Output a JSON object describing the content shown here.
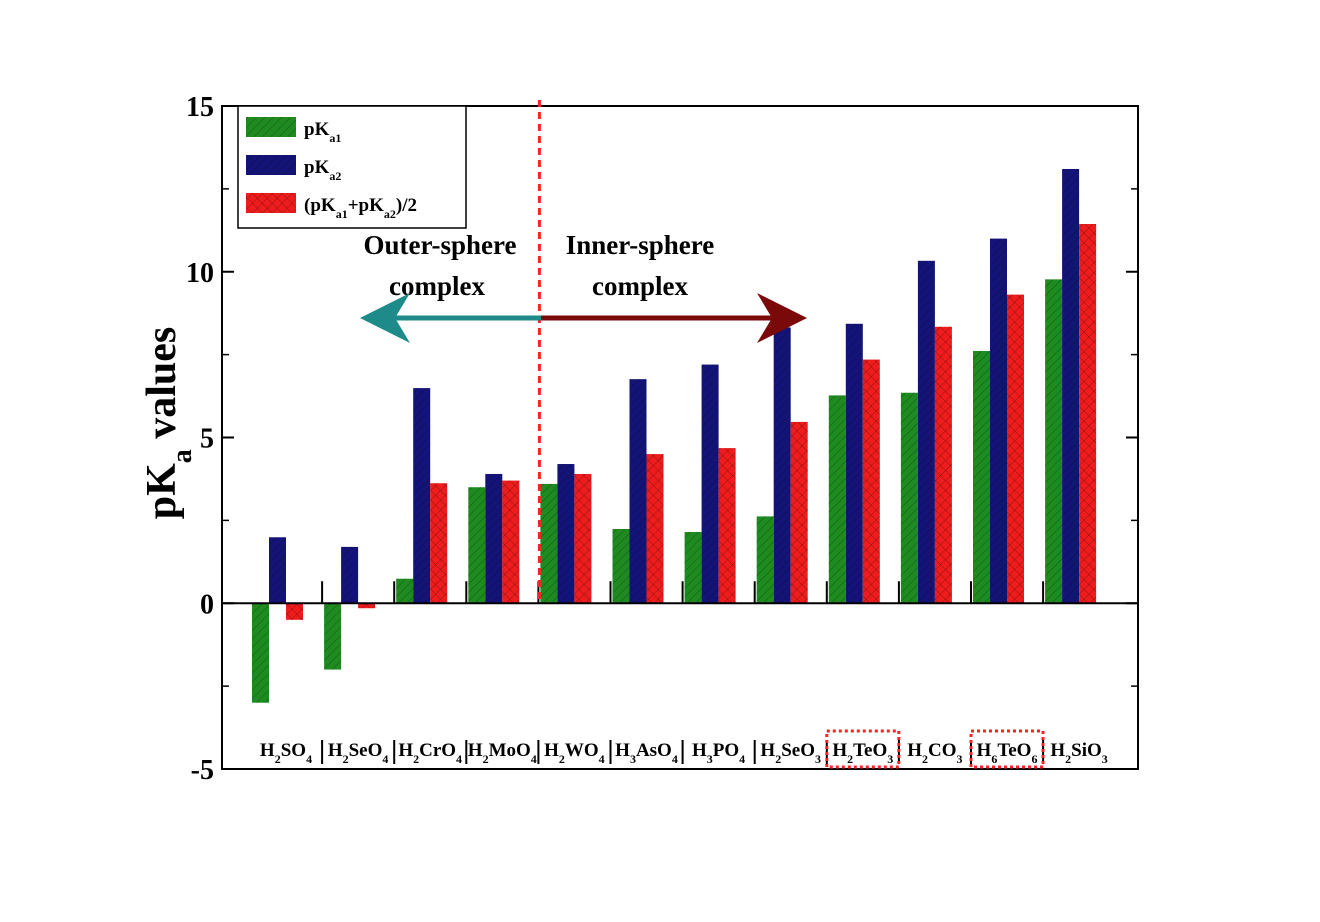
{
  "chart_data": {
    "type": "bar",
    "title": "",
    "xlabel": "",
    "ylabel": {
      "main": "pK",
      "sub": "a",
      "rest": " values"
    },
    "ylim": [
      -5,
      15
    ],
    "y_ticks": [
      -5,
      0,
      5,
      10,
      15
    ],
    "grid": false,
    "legend_position": "top-left",
    "categories": [
      {
        "main": "H",
        "parts": [
          [
            "2",
            "sub"
          ],
          [
            "SO",
            "main"
          ],
          [
            "4",
            "sub"
          ]
        ]
      },
      {
        "main": "H",
        "parts": [
          [
            "2",
            "sub"
          ],
          [
            "SeO",
            "main"
          ],
          [
            "4",
            "sub"
          ]
        ]
      },
      {
        "main": "H",
        "parts": [
          [
            "2",
            "sub"
          ],
          [
            "CrO",
            "main"
          ],
          [
            "4",
            "sub"
          ]
        ]
      },
      {
        "main": "H",
        "parts": [
          [
            "2",
            "sub"
          ],
          [
            "MoO",
            "main"
          ],
          [
            "4",
            "sub"
          ]
        ]
      },
      {
        "main": "H",
        "parts": [
          [
            "2",
            "sub"
          ],
          [
            "WO",
            "main"
          ],
          [
            "4",
            "sub"
          ]
        ]
      },
      {
        "main": "H",
        "parts": [
          [
            "3",
            "sub"
          ],
          [
            "AsO",
            "main"
          ],
          [
            "4",
            "sub"
          ]
        ]
      },
      {
        "main": "H",
        "parts": [
          [
            "3",
            "sub"
          ],
          [
            "PO",
            "main"
          ],
          [
            "4",
            "sub"
          ]
        ]
      },
      {
        "main": "H",
        "parts": [
          [
            "2",
            "sub"
          ],
          [
            "SeO",
            "main"
          ],
          [
            "3",
            "sub"
          ]
        ]
      },
      {
        "main": "H",
        "parts": [
          [
            "2",
            "sub"
          ],
          [
            "TeO",
            "main"
          ],
          [
            "3",
            "sub"
          ]
        ],
        "highlight": true
      },
      {
        "main": "H",
        "parts": [
          [
            "2",
            "sub"
          ],
          [
            "CO",
            "main"
          ],
          [
            "3",
            "sub"
          ]
        ]
      },
      {
        "main": "H",
        "parts": [
          [
            "6",
            "sub"
          ],
          [
            "TeO",
            "main"
          ],
          [
            "6",
            "sub"
          ]
        ],
        "highlight": true
      },
      {
        "main": "H",
        "parts": [
          [
            "2",
            "sub"
          ],
          [
            "SiO",
            "main"
          ],
          [
            "3",
            "sub"
          ]
        ]
      }
    ],
    "series": [
      {
        "name": "pKa1",
        "label": [
          [
            "pK",
            "main"
          ],
          [
            "a1",
            "sub"
          ]
        ],
        "color": "#1f8a1f",
        "pattern": "diag",
        "values": [
          -3.0,
          -2.0,
          0.74,
          3.5,
          3.6,
          2.24,
          2.15,
          2.62,
          6.27,
          6.35,
          7.61,
          9.77
        ]
      },
      {
        "name": "pKa2",
        "label": [
          [
            "pK",
            "main"
          ],
          [
            "a2",
            "sub"
          ]
        ],
        "color": "#141478",
        "pattern": "diag",
        "values": [
          1.99,
          1.7,
          6.49,
          3.9,
          4.2,
          6.76,
          7.2,
          8.32,
          8.43,
          10.33,
          11.0,
          13.1
        ]
      },
      {
        "name": "(pKa1+pKa2)/2",
        "label": [
          [
            "(pK",
            "main"
          ],
          [
            "a1",
            "sub"
          ],
          [
            "+pK",
            "main"
          ],
          [
            "a2",
            "sub"
          ],
          [
            ")/2",
            "main"
          ]
        ],
        "color": "#ee1c1c",
        "pattern": "cross",
        "values": [
          -0.5,
          -0.15,
          3.62,
          3.7,
          3.9,
          4.5,
          4.68,
          5.47,
          7.35,
          8.34,
          9.31,
          11.44
        ]
      }
    ],
    "annotations": {
      "outer": [
        "Outer-sphere",
        "complex"
      ],
      "inner": [
        "Inner-sphere",
        "complex"
      ],
      "divider_between_categories": [
        3,
        4
      ]
    },
    "colors": {
      "divider": "#ff2222",
      "highlight_box": "#ff2222",
      "arrow_outer": "#1e8a8a",
      "arrow_inner": "#7a0a0a"
    }
  }
}
